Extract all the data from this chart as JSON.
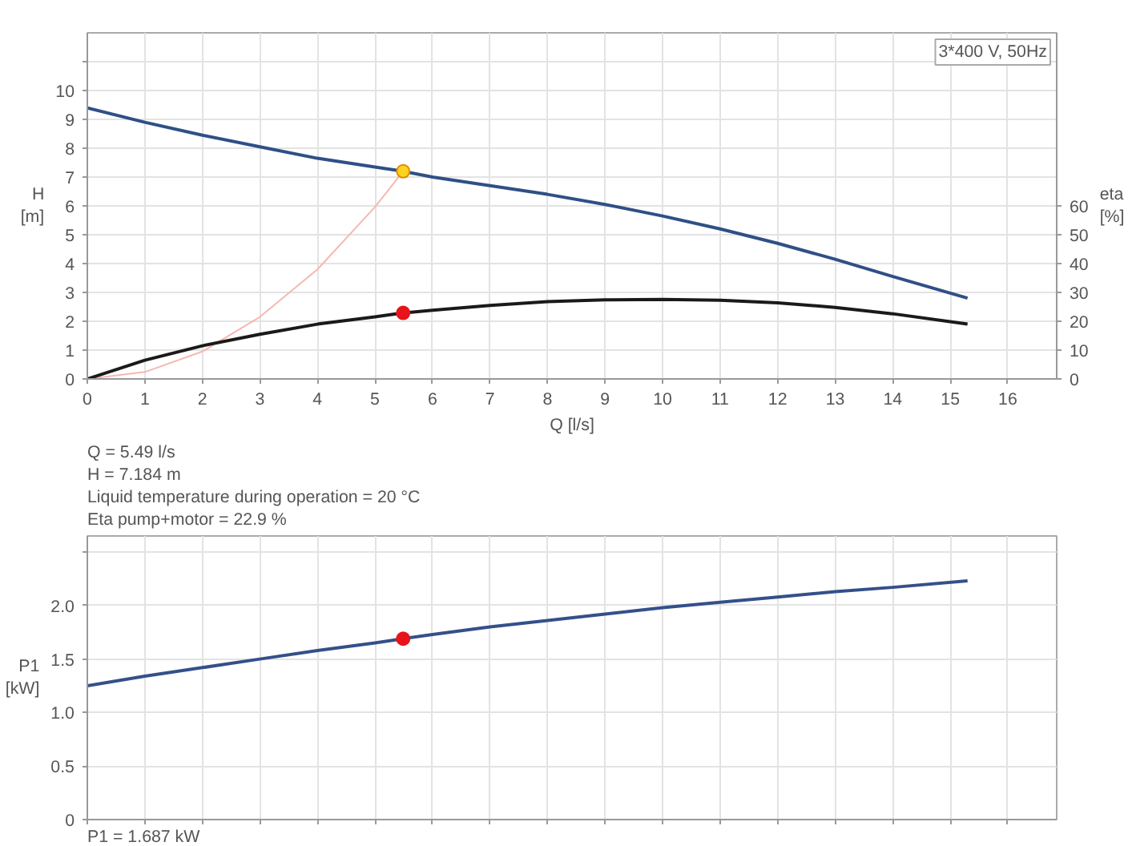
{
  "chart_data": [
    {
      "type": "line",
      "xlabel": "Q [l/s]",
      "ylabel": "H\n[m]",
      "y2label": "eta\n[%]",
      "xlim": [
        0,
        16.85
      ],
      "ylim": [
        0,
        12
      ],
      "y2lim": [
        0,
        120
      ],
      "xticks": [
        0,
        1,
        2,
        3,
        4,
        5,
        6,
        7,
        8,
        9,
        10,
        11,
        12,
        13,
        14,
        15,
        16
      ],
      "yticks": [
        0,
        1,
        2,
        3,
        4,
        5,
        6,
        7,
        8,
        9,
        10,
        {
          "value": 11,
          "label": null
        }
      ],
      "y2ticks": [
        0,
        10,
        20,
        30,
        40,
        50,
        60
      ],
      "grid": true,
      "annotations": [
        "3*400 V, 50Hz",
        "Q = 5.49 l/s",
        "H = 7.184 m",
        "Liquid temperature during operation = 20 °C",
        "Eta pump+motor = 22.9 %"
      ],
      "series": [
        {
          "color": "#f5b8b2",
          "x": [
            0,
            1,
            2,
            3,
            4,
            5,
            5.49
          ],
          "values": [
            0,
            0.24,
            0.95,
            2.15,
            3.8,
            5.96,
            7.2
          ]
        },
        {
          "color": "#2f4f86",
          "x": [
            0,
            1,
            2,
            3,
            4,
            5,
            5.49,
            6,
            7,
            8,
            9,
            10,
            11,
            12,
            13,
            14,
            15.3
          ],
          "values": [
            9.4,
            8.9,
            8.45,
            8.05,
            7.65,
            7.35,
            7.2,
            7.0,
            6.7,
            6.4,
            6.05,
            5.65,
            5.2,
            4.7,
            4.15,
            3.55,
            2.8
          ]
        },
        {
          "axis": "y2",
          "color": "#1a1a1a",
          "x": [
            0,
            1,
            2,
            3,
            4,
            5,
            5.49,
            6,
            7,
            8,
            9,
            10,
            11,
            12,
            13,
            14,
            15.3
          ],
          "values": [
            0,
            6.5,
            11.5,
            15.5,
            19,
            21.5,
            22.9,
            23.8,
            25.5,
            26.8,
            27.4,
            27.6,
            27.3,
            26.4,
            24.8,
            22.6,
            19
          ]
        },
        {
          "type": "scatter",
          "color": "#ffd21f",
          "x": [
            5.49
          ],
          "values": [
            7.2
          ]
        },
        {
          "type": "scatter",
          "axis": "y2",
          "color": "#e8141b",
          "x": [
            5.49
          ],
          "values": [
            22.9
          ]
        }
      ]
    },
    {
      "type": "line",
      "ylabel": "P1\n[kW]",
      "xlim": [
        0,
        16.85
      ],
      "ylim": [
        0,
        2.65
      ],
      "xticks": [
        0,
        1,
        2,
        3,
        4,
        5,
        6,
        7,
        8,
        9,
        10,
        11,
        12,
        13,
        14,
        15,
        16
      ],
      "yticks": [
        0,
        0.5,
        {
          "value": 1,
          "label": "1.0"
        },
        1.5,
        {
          "value": 2,
          "label": "2.0"
        },
        {
          "value": 2.5,
          "label": null
        }
      ],
      "tick_labels": "y",
      "grid": true,
      "annotations": [
        "P1 = 1.687 kW"
      ],
      "series": [
        {
          "color": "#34508a",
          "x": [
            0,
            1,
            2,
            3,
            4,
            5,
            5.49,
            6,
            7,
            8,
            9,
            10,
            11,
            12,
            13,
            14,
            15.3
          ],
          "values": [
            1.25,
            1.34,
            1.42,
            1.5,
            1.58,
            1.65,
            1.69,
            1.73,
            1.8,
            1.86,
            1.92,
            1.98,
            2.03,
            2.08,
            2.13,
            2.17,
            2.23
          ]
        },
        {
          "type": "scatter",
          "color": "#e8141b",
          "x": [
            5.49
          ],
          "values": [
            1.69
          ]
        }
      ]
    }
  ]
}
